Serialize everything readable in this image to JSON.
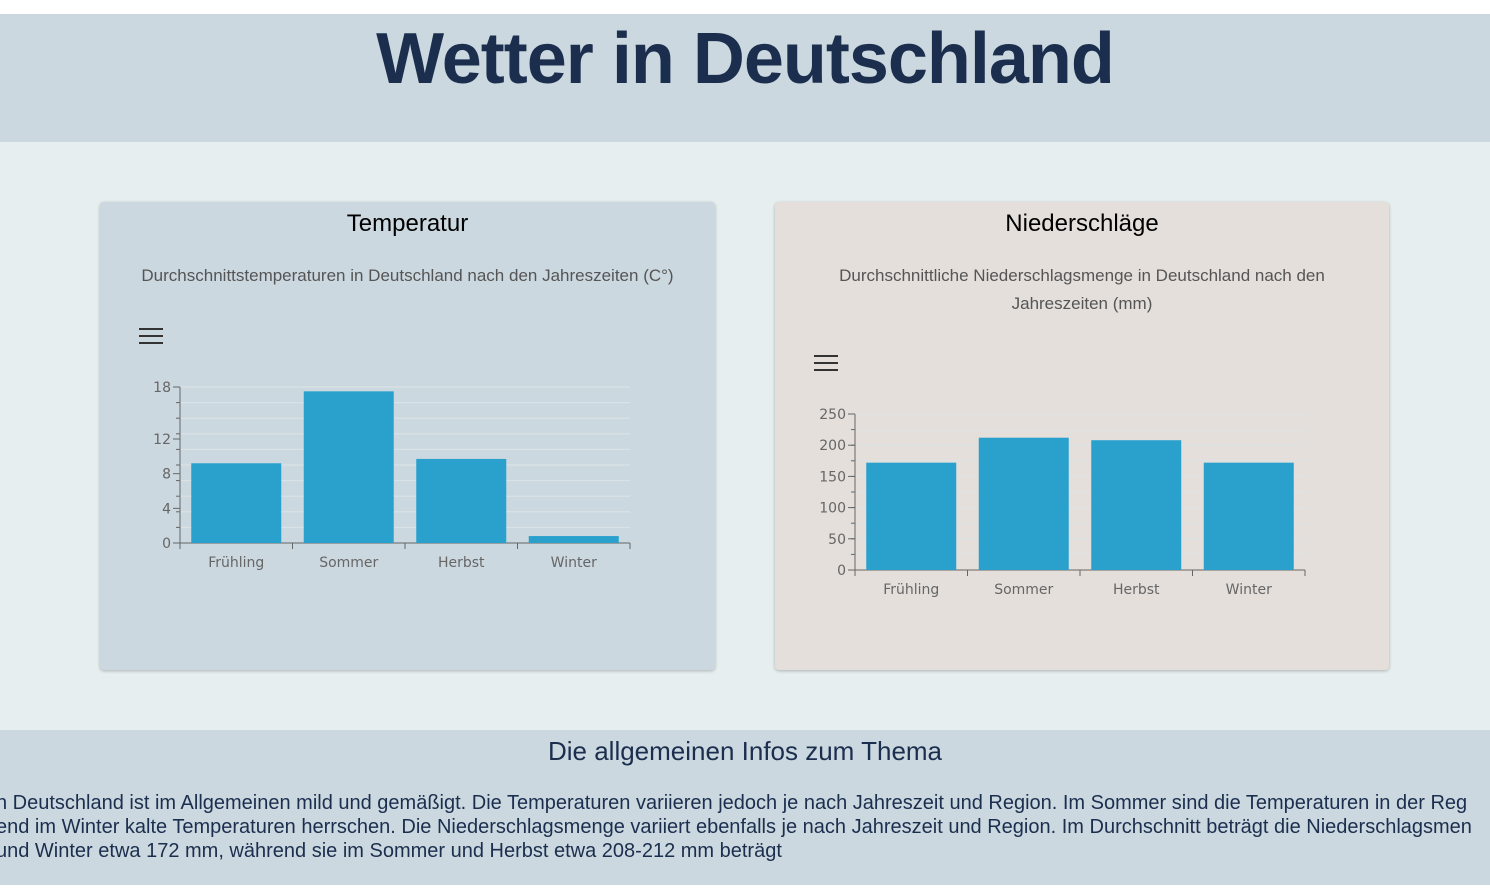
{
  "header": {
    "title": "Wetter in Deutschland"
  },
  "temperature_card": {
    "title": "Temperatur",
    "subtitle": "Durchschnittstemperaturen in Deutschland nach den Jahreszeiten (C°)",
    "menu_icon": "menu-icon"
  },
  "precipitation_card": {
    "title": "Niederschläge",
    "subtitle": "Durchschnittliche Niederschlagsmenge in Deutschland nach den Jahreszeiten (mm)",
    "menu_icon": "menu-icon"
  },
  "chart_data": [
    {
      "type": "bar",
      "title": "Temperatur",
      "subtitle": "Durchschnittstemperaturen in Deutschland nach den Jahreszeiten (C°)",
      "categories": [
        "Frühling",
        "Sommer",
        "Herbst",
        "Winter"
      ],
      "values": [
        9.2,
        17.5,
        9.7,
        0.8
      ],
      "yticks": [
        0,
        4,
        8,
        12,
        18
      ],
      "ylim": [
        0,
        18
      ],
      "xlabel": "",
      "ylabel": "",
      "grid": true,
      "color": "#2aa1cd"
    },
    {
      "type": "bar",
      "title": "Niederschläge",
      "subtitle": "Durchschnittliche Niederschlagsmenge in Deutschland nach den Jahreszeiten (mm)",
      "categories": [
        "Frühling",
        "Sommer",
        "Herbst",
        "Winter"
      ],
      "values": [
        172,
        212,
        208,
        172
      ],
      "yticks": [
        0,
        50,
        100,
        150,
        200,
        250
      ],
      "ylim": [
        0,
        250
      ],
      "xlabel": "",
      "ylabel": "",
      "grid": true,
      "color": "#2aa1cd"
    }
  ],
  "info": {
    "heading": "Die allgemeinen Infos zum Thema",
    "lines": [
      "n Deutschland ist im Allgemeinen mild und gemäßigt. Die Temperaturen variieren jedoch je nach Jahreszeit und Region. Im Sommer sind die Temperaturen in der Reg",
      "end im Winter kalte Temperaturen herrschen. Die Niederschlagsmenge variiert ebenfalls je nach Jahreszeit und Region. Im Durchschnitt beträgt die Niederschlagsmen",
      "und Winter etwa 172 mm, während sie im Sommer und Herbst etwa 208-212 mm beträgt"
    ]
  }
}
